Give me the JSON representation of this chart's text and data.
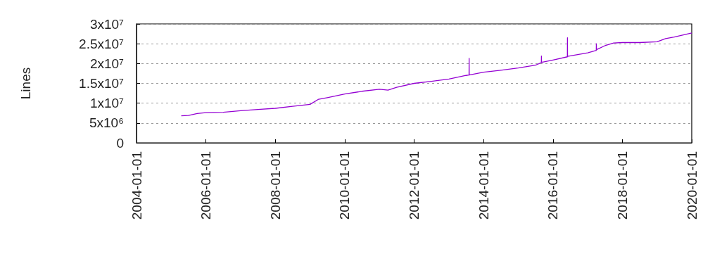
{
  "chart_data": {
    "type": "line",
    "ylabel": "Lines",
    "x": [
      "2005-04-16",
      "2005-07-01",
      "2005-10-01",
      "2006-01-01",
      "2006-07-01",
      "2007-01-01",
      "2007-07-01",
      "2008-01-01",
      "2008-07-01",
      "2009-01-01",
      "2009-04-01",
      "2009-07-01",
      "2010-01-01",
      "2010-07-01",
      "2011-01-01",
      "2011-04-01",
      "2011-07-01",
      "2012-01-01",
      "2012-07-01",
      "2013-01-01",
      "2013-07-01",
      "2013-08-01",
      "2013-08-02",
      "2013-08-03",
      "2014-01-01",
      "2014-07-01",
      "2015-01-01",
      "2015-07-01",
      "2015-09-01",
      "2015-09-02",
      "2015-09-03",
      "2016-01-01",
      "2016-06-01",
      "2016-06-02",
      "2016-06-03",
      "2017-01-01",
      "2017-04-01",
      "2017-04-02",
      "2017-04-03",
      "2017-07-01",
      "2017-10-01",
      "2018-01-01",
      "2018-07-01",
      "2019-01-01",
      "2019-04-01",
      "2019-07-01",
      "2020-01-01"
    ],
    "series": [
      {
        "color": "#9400d3",
        "values": [
          6800000,
          6900000,
          7400000,
          7600000,
          7700000,
          8100000,
          8400000,
          8700000,
          9200000,
          9700000,
          11000000,
          11400000,
          12300000,
          13000000,
          13500000,
          13300000,
          14000000,
          15000000,
          15500000,
          16100000,
          17000000,
          17100000,
          21300000,
          17100000,
          17800000,
          18300000,
          18900000,
          19600000,
          20200000,
          21900000,
          20300000,
          20900000,
          21700000,
          26500000,
          21800000,
          22700000,
          23300000,
          25000000,
          23500000,
          24500000,
          25200000,
          25300000,
          25300000,
          25500000,
          26300000,
          26700000,
          27700000
        ]
      }
    ],
    "xlim": [
      "2004-01-01",
      "2020-01-01"
    ],
    "xticks": [
      "2004-01-01",
      "2006-01-01",
      "2008-01-01",
      "2010-01-01",
      "2012-01-01",
      "2014-01-01",
      "2016-01-01",
      "2018-01-01",
      "2020-01-01"
    ],
    "ylim": [
      0,
      30000000
    ],
    "yticks": [
      0,
      {
        "value": 5000000,
        "label": "5x10⁶"
      },
      {
        "value": 10000000,
        "label": "1x10⁷"
      },
      {
        "value": 15000000,
        "label": "1.5x10⁷"
      },
      {
        "value": 20000000,
        "label": "2x10⁷"
      },
      {
        "value": 25000000,
        "label": "2.5x10⁷"
      },
      {
        "value": 30000000,
        "label": "3x10⁷"
      }
    ],
    "grid": "y",
    "marker": "none",
    "line_style": "solid"
  }
}
